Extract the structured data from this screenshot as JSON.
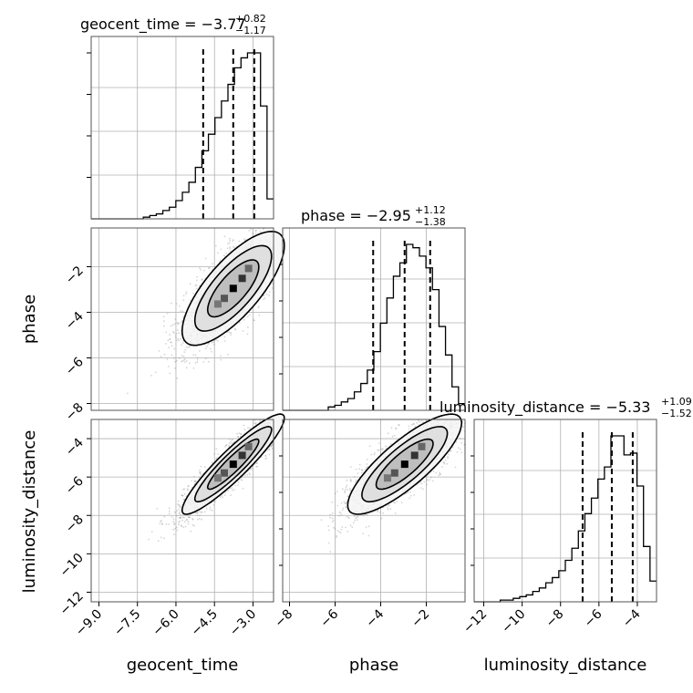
{
  "chart_data": {
    "type": "corner",
    "parameters": [
      "geocent_time",
      "phase",
      "luminosity_distance"
    ],
    "axis_labels": {
      "x": [
        "geocent_time",
        "phase",
        "luminosity_distance"
      ],
      "y": [
        "phase",
        "luminosity_distance"
      ]
    },
    "ranges": {
      "geocent_time": [
        -9.3,
        -2.2
      ],
      "phase": [
        -8.3,
        -0.3
      ],
      "luminosity_distance": [
        -12.5,
        -3.0
      ]
    },
    "ticks": {
      "geocent_time": [
        "−9.0",
        "−7.5",
        "−6.0",
        "−4.5",
        "−3.0"
      ],
      "geocent_time_values": [
        -9.0,
        -7.5,
        -6.0,
        -4.5,
        -3.0
      ],
      "phase": [
        "−8",
        "−6",
        "−4",
        "−2"
      ],
      "phase_values": [
        -8,
        -6,
        -4,
        -2
      ],
      "luminosity_distance": [
        "−12",
        "−10",
        "−8",
        "−6",
        "−4"
      ],
      "luminosity_distance_values": [
        -12,
        -10,
        -8,
        -6,
        -4
      ]
    },
    "titles": [
      {
        "param": "geocent_time",
        "text": "geocent_time = −3.77",
        "plus": "+0.82",
        "minus": "−1.17"
      },
      {
        "param": "phase",
        "text": "phase = −2.95",
        "plus": "+1.12",
        "minus": "−1.38"
      },
      {
        "param": "luminosity_distance",
        "text": "luminosity_distance = −5.33",
        "plus": "+1.09",
        "minus": "−1.52"
      }
    ],
    "quantiles": {
      "geocent_time": [
        -4.94,
        -3.77,
        -2.95
      ],
      "phase": [
        -4.33,
        -2.95,
        -1.83
      ],
      "luminosity_distance": [
        -6.85,
        -5.33,
        -4.24
      ]
    },
    "histograms": {
      "geocent_time": {
        "lo": -9.3,
        "hi": -2.2,
        "counts": [
          0,
          0,
          0,
          0,
          0,
          0,
          0,
          0,
          1,
          2,
          3,
          5,
          7,
          11,
          16,
          22,
          31,
          41,
          51,
          61,
          71,
          81,
          91,
          97,
          100,
          100,
          68,
          12
        ]
      },
      "phase": {
        "lo": -8.3,
        "hi": -0.3,
        "counts": [
          0,
          0,
          0,
          0,
          0,
          0,
          0,
          2,
          3,
          5,
          7,
          11,
          16,
          24,
          35,
          52,
          67,
          80,
          88,
          99,
          97,
          92,
          85,
          72,
          50,
          33,
          14,
          4
        ]
      },
      "luminosity_distance": {
        "lo": -12.5,
        "hi": -3.0,
        "counts": [
          0,
          0,
          0,
          0,
          1,
          1,
          2,
          3,
          4,
          6,
          8,
          11,
          14,
          18,
          24,
          31,
          41,
          51,
          60,
          71,
          78,
          96,
          96,
          85,
          86,
          67,
          32,
          12
        ]
      }
    },
    "correlations": {
      "phase_vs_geocent_time": 0.75,
      "luminosity_distance_vs_geocent_time": 0.92,
      "luminosity_distance_vs_phase": 0.82
    },
    "style": {
      "grid": true,
      "line_color": "#000000",
      "grid_color": "#b0b0b0",
      "point_color": "#888888"
    }
  }
}
